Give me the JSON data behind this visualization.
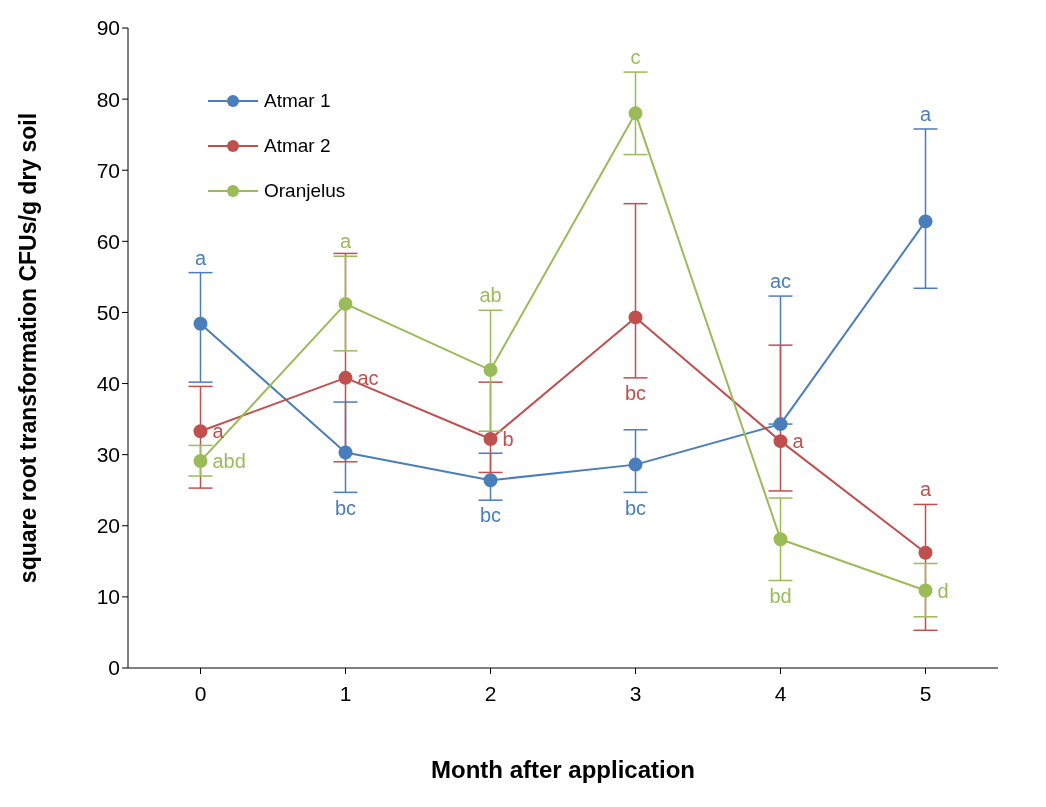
{
  "chart_data": {
    "type": "line",
    "xlabel": "Month after application",
    "ylabel": "square root transformation  CFUs/g dry soil",
    "categories": [
      "0",
      "1",
      "2",
      "3",
      "4",
      "5"
    ],
    "ylim": [
      0,
      90
    ],
    "yticks": [
      0,
      10,
      20,
      30,
      40,
      50,
      60,
      70,
      80,
      90
    ],
    "grid": false,
    "legend": "top left",
    "marker": "circle",
    "line_style": "solid",
    "series": [
      {
        "name": "Atmar 1",
        "color": "#4a7ebb",
        "values": [
          48.4,
          30.3,
          26.4,
          28.6,
          34.3,
          62.8
        ],
        "errors": [
          [
            40.2,
            55.6
          ],
          [
            24.7,
            37.4
          ],
          [
            23.6,
            30.2
          ],
          [
            24.7,
            33.5
          ],
          [
            34.3,
            52.3
          ],
          [
            53.4,
            75.8
          ]
        ]
      },
      {
        "name": "Atmar 2",
        "color": "#c0504d",
        "values": [
          33.3,
          40.8,
          32.2,
          49.3,
          31.9,
          16.2
        ],
        "errors": [
          [
            25.3,
            39.6
          ],
          [
            29.0,
            58.3
          ],
          [
            27.5,
            40.2
          ],
          [
            40.8,
            65.3
          ],
          [
            24.9,
            45.4
          ],
          [
            5.3,
            23.0
          ]
        ]
      },
      {
        "name": "Oranjelus",
        "color": "#9bbb59",
        "values": [
          29.1,
          51.2,
          41.9,
          78.0,
          18.1,
          10.9
        ],
        "errors": [
          [
            27.0,
            31.3
          ],
          [
            44.6,
            57.9
          ],
          [
            33.3,
            50.3
          ],
          [
            72.2,
            83.8
          ],
          [
            12.3,
            23.9
          ],
          [
            7.2,
            14.7
          ]
        ]
      }
    ],
    "annotations": [
      {
        "text": "a",
        "x": "0",
        "y": 55.6
      },
      {
        "text": "bc",
        "x": "1",
        "y": 24.7
      },
      {
        "text": "bc",
        "x": "2",
        "y": 23.6
      },
      {
        "text": "bc",
        "x": "3",
        "y": 24.7
      },
      {
        "text": "ac",
        "x": "4",
        "y": 52.3
      },
      {
        "text": "a",
        "x": "5",
        "y": 75.8
      },
      {
        "text": "a",
        "x": "0",
        "y": 33.3
      },
      {
        "text": "ac",
        "x": "1",
        "y": 40.8
      },
      {
        "text": "b",
        "x": "2",
        "y": 32.2
      },
      {
        "text": "bc",
        "x": "3",
        "y": 40.8
      },
      {
        "text": "a",
        "x": "4",
        "y": 31.9
      },
      {
        "text": "a",
        "x": "5",
        "y": 23.0
      },
      {
        "text": "abd",
        "x": "0",
        "y": 29.1
      },
      {
        "text": "a",
        "x": "1",
        "y": 57.9
      },
      {
        "text": "ab",
        "x": "2",
        "y": 50.3
      },
      {
        "text": "c",
        "x": "3",
        "y": 83.8
      },
      {
        "text": "bd",
        "x": "4",
        "y": 12.3
      },
      {
        "text": "d",
        "x": "5",
        "y": 10.9
      }
    ]
  }
}
